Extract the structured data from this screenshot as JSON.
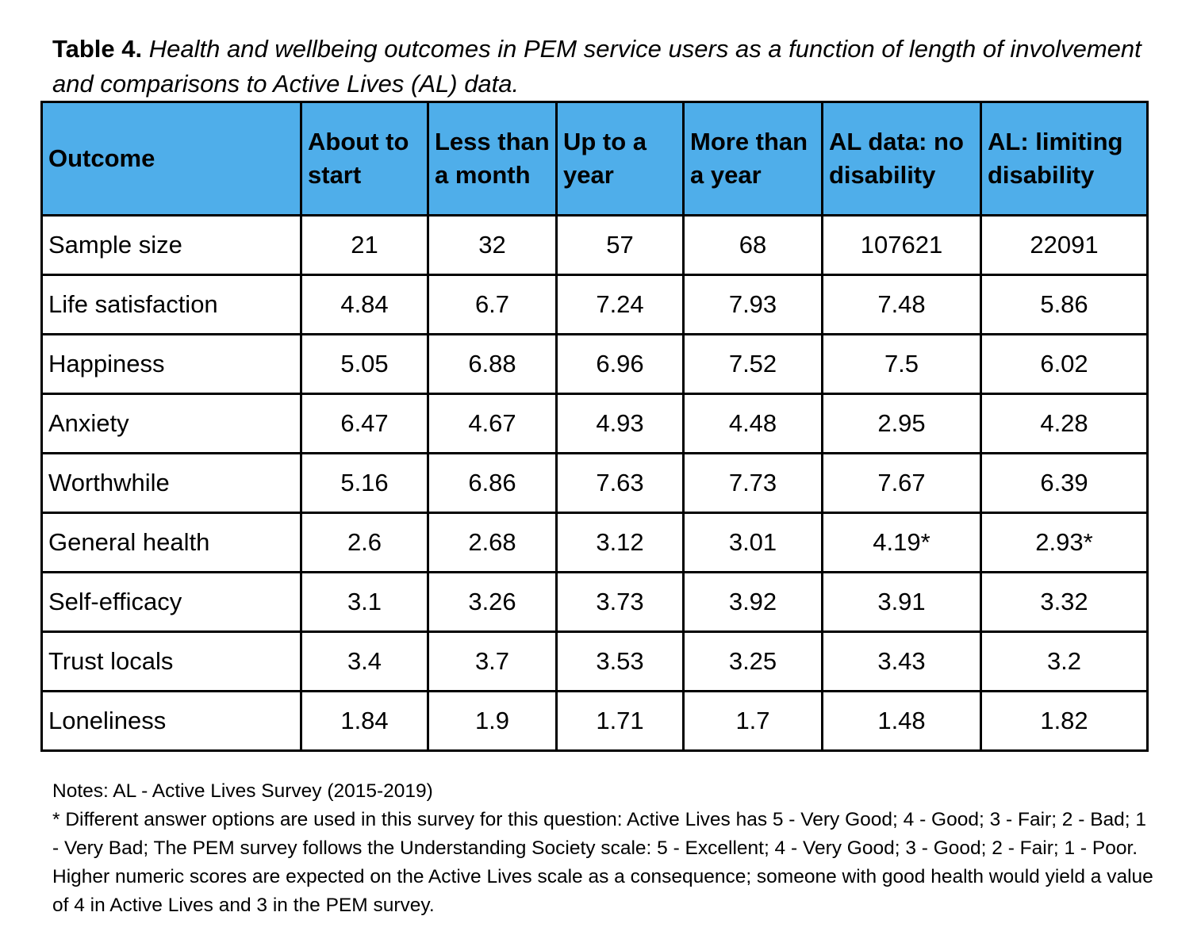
{
  "caption": {
    "label": "Table 4.",
    "text": "Health and wellbeing outcomes in PEM service users as a function of length of involvement and comparisons to Active Lives (AL) data."
  },
  "table": {
    "headers": [
      "Outcome",
      "About to start",
      "Less than a month",
      "Up to a year",
      "More than a year",
      "AL data: no disability",
      "AL: limiting disability"
    ],
    "rows": [
      [
        "Sample size",
        "21",
        "32",
        "57",
        "68",
        "107621",
        "22091"
      ],
      [
        "Life satisfaction",
        "4.84",
        "6.7",
        "7.24",
        "7.93",
        "7.48",
        "5.86"
      ],
      [
        "Happiness",
        "5.05",
        "6.88",
        "6.96",
        "7.52",
        "7.5",
        "6.02"
      ],
      [
        "Anxiety",
        "6.47",
        "4.67",
        "4.93",
        "4.48",
        "2.95",
        "4.28"
      ],
      [
        "Worthwhile",
        "5.16",
        "6.86",
        "7.63",
        "7.73",
        "7.67",
        "6.39"
      ],
      [
        "General health",
        "2.6",
        "2.68",
        "3.12",
        "3.01",
        "4.19*",
        "2.93*"
      ],
      [
        "Self-efficacy",
        "3.1",
        "3.26",
        "3.73",
        "3.92",
        "3.91",
        "3.32"
      ],
      [
        "Trust locals",
        "3.4",
        "3.7",
        "3.53",
        "3.25",
        "3.43",
        "3.2"
      ],
      [
        "Loneliness",
        "1.84",
        "1.9",
        "1.71",
        "1.7",
        "1.48",
        "1.82"
      ]
    ]
  },
  "notes": {
    "line1": "Notes: AL - Active Lives Survey (2015-2019)",
    "line2": "* Different answer options are used in this survey for this question: Active Lives has 5 - Very Good; 4 - Good; 3 - Fair; 2 - Bad; 1 - Very Bad; The PEM survey follows the Understanding Society scale: 5 - Excellent; 4 - Very Good; 3 - Good; 2 - Fair; 1 - Poor. Higher numeric scores are expected on the Active Lives scale as a consequence; someone with good health would yield a value of 4 in Active Lives and 3 in the PEM survey."
  },
  "colors": {
    "header_background": "#4faeea",
    "border": "#000000"
  }
}
